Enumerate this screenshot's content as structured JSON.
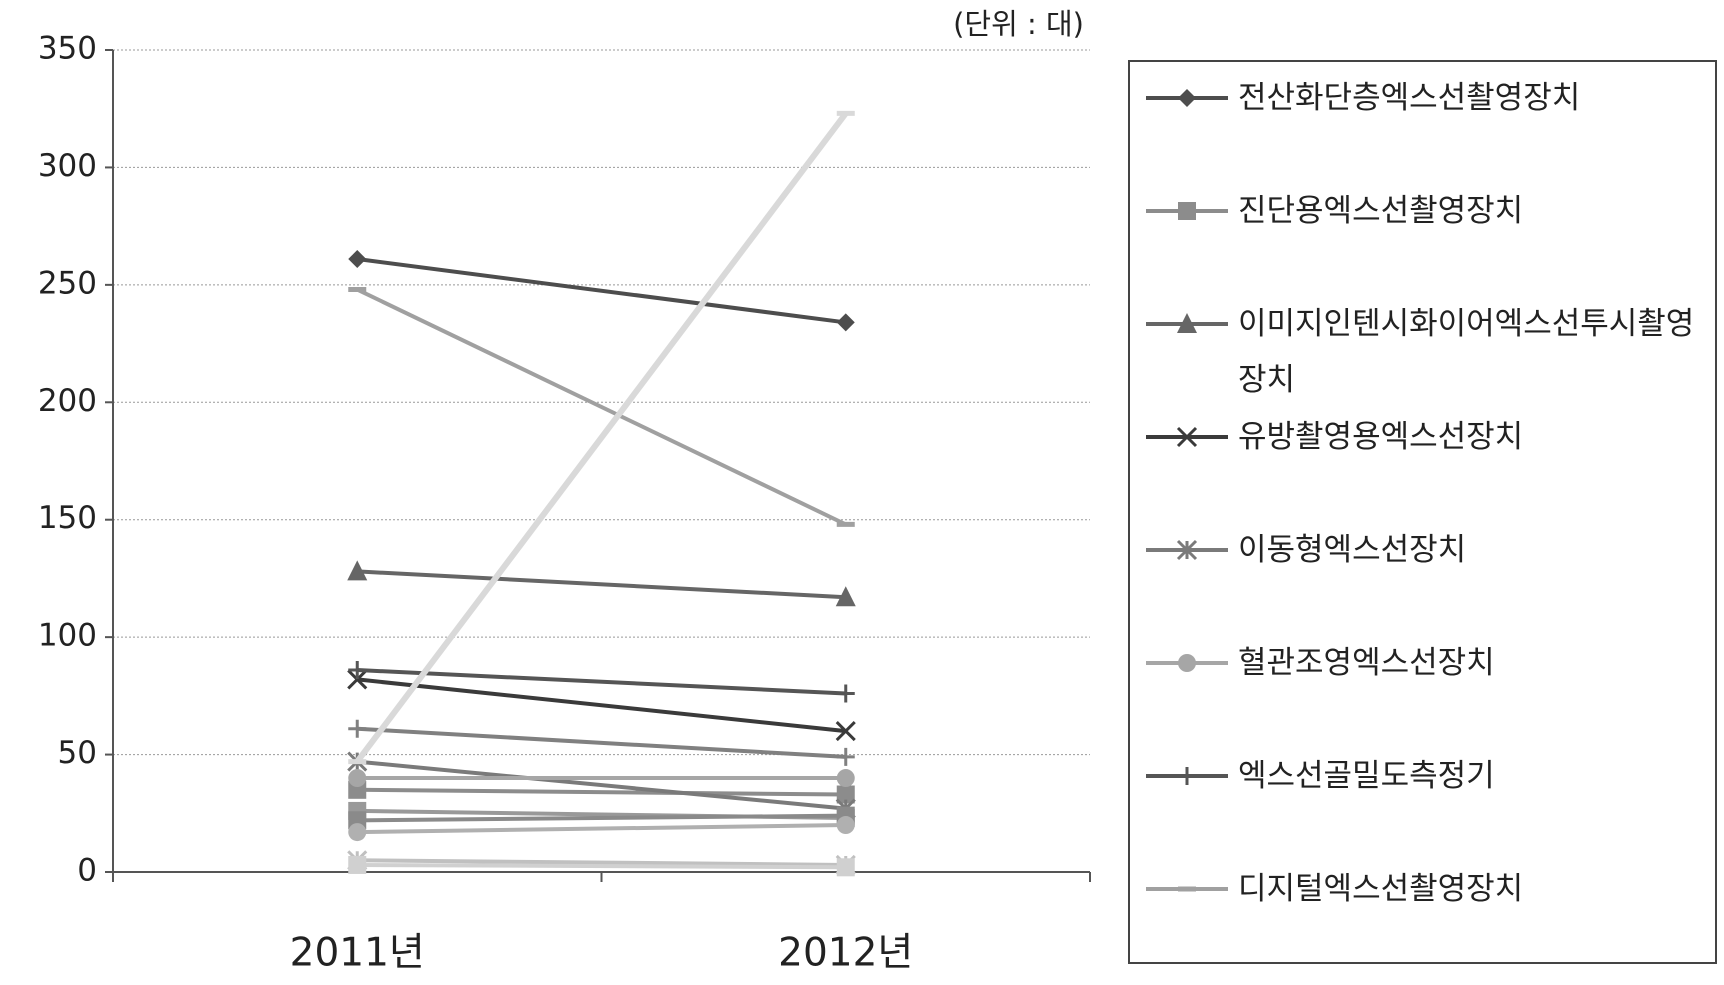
{
  "chart_data": {
    "type": "line",
    "unit": "(단위 : 대)",
    "categories": [
      "2011년",
      "2012년"
    ],
    "ylim": [
      0,
      350
    ],
    "yticks": [
      0,
      50,
      100,
      150,
      200,
      250,
      300,
      350
    ],
    "grid": true,
    "series": [
      {
        "name": "전산화단층엑스선촬영장치",
        "color": "#4d4d4d",
        "marker": "diamond",
        "values": [
          261,
          234
        ]
      },
      {
        "name": "진단용엑스선촬영장치",
        "color": "#8c8c8c",
        "marker": "square",
        "values": [
          35,
          33
        ]
      },
      {
        "name": "이미지인텐시화이어엑스선투시촬영장치",
        "color": "#666666",
        "marker": "triangle",
        "values": [
          128,
          117
        ]
      },
      {
        "name": "유방촬영용엑스선장치",
        "color": "#3a3a3a",
        "marker": "x",
        "values": [
          82,
          60
        ]
      },
      {
        "name": "이동형엑스선장치",
        "color": "#7a7a7a",
        "marker": "asterisk",
        "values": [
          47,
          27
        ]
      },
      {
        "name": "혈관조영엑스선장치",
        "color": "#a6a6a6",
        "marker": "circle",
        "values": [
          40,
          40
        ]
      },
      {
        "name": "엑스선골밀도측정기",
        "color": "#555555",
        "marker": "plus",
        "values": [
          86,
          76
        ]
      },
      {
        "name": "디지털엑스선촬영장치",
        "color": "#a0a0a0",
        "marker": "dash",
        "values": [
          248,
          148
        ]
      },
      {
        "color": "#808080",
        "marker": "plus",
        "values": [
          61,
          49
        ]
      },
      {
        "color": "#d9d9d9",
        "marker": "dash",
        "values": [
          47,
          323
        ]
      },
      {
        "color": "#999999",
        "marker": "square",
        "values": [
          26,
          23
        ]
      },
      {
        "color": "#8a8a8a",
        "marker": "square",
        "values": [
          22,
          24
        ]
      },
      {
        "color": "#b0b0b0",
        "marker": "circle",
        "values": [
          17,
          20
        ]
      },
      {
        "color": "#c0c0c0",
        "marker": "asterisk",
        "values": [
          5,
          3
        ]
      },
      {
        "color": "#d0d0d0",
        "marker": "square",
        "values": [
          3,
          2
        ]
      }
    ]
  }
}
